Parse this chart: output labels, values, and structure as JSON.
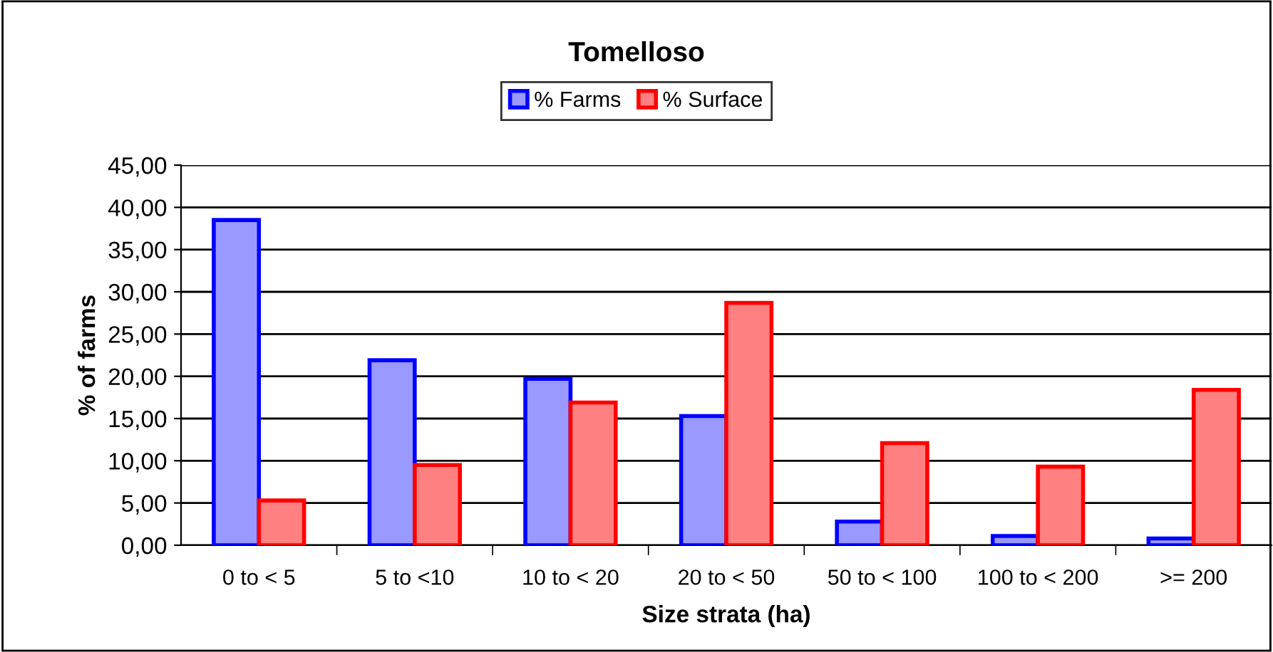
{
  "chart_data": {
    "type": "bar",
    "title": "Tomelloso",
    "xlabel": "Size strata (ha)",
    "ylabel": "% of farms",
    "categories": [
      "0 to < 5",
      "5 to <10",
      "10 to < 20",
      "20 to < 50",
      "50 to < 100",
      "100 to < 200",
      ">= 200"
    ],
    "series": [
      {
        "name": "% Farms",
        "color": "#9999ff",
        "values": [
          38.5,
          21.9,
          19.7,
          15.3,
          2.8,
          1.1,
          0.8
        ]
      },
      {
        "name": "% Surface",
        "color": "#ff8080",
        "values": [
          5.3,
          9.5,
          16.9,
          28.7,
          12.1,
          9.3,
          18.4
        ]
      }
    ],
    "ylim": [
      0,
      45
    ],
    "yticks": [
      {
        "value": 0,
        "label": "0,00"
      },
      {
        "value": 5,
        "label": "5,00"
      },
      {
        "value": 10,
        "label": "10,00"
      },
      {
        "value": 15,
        "label": "15,00"
      },
      {
        "value": 20,
        "label": "20,00"
      },
      {
        "value": 25,
        "label": "25,00"
      },
      {
        "value": 30,
        "label": "30,00"
      },
      {
        "value": 35,
        "label": "35,00"
      },
      {
        "value": 40,
        "label": "40,00"
      },
      {
        "value": 45,
        "label": "45,00"
      }
    ],
    "grid": "y",
    "legend": "top"
  }
}
